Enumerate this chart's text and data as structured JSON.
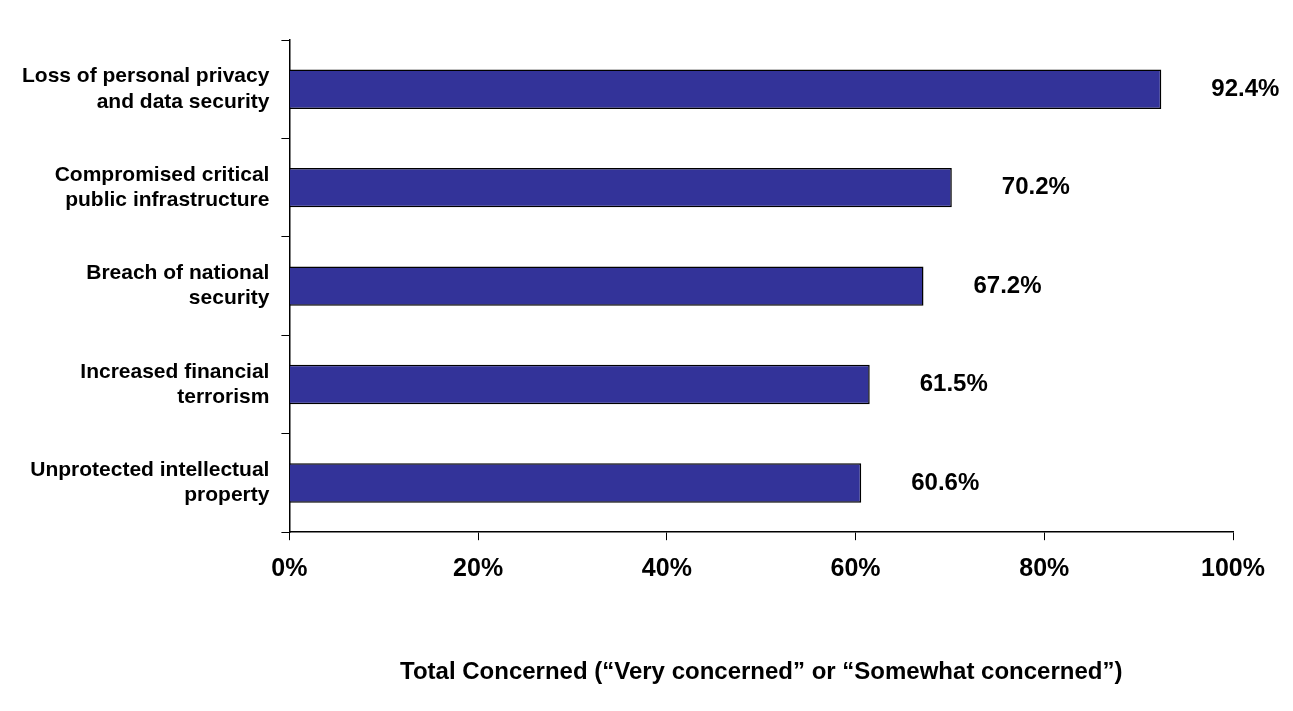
{
  "chart_data": {
    "type": "bar",
    "orientation": "horizontal",
    "xlabel": "Total Concerned (“Very concerned” or “Somewhat concerned”)",
    "categories": [
      "Loss of personal privacy and data security",
      "Compromised critical public infrastructure",
      "Breach of national security",
      "Increased financial terrorism",
      "Unprotected intellectual property"
    ],
    "values": [
      92.4,
      70.2,
      67.2,
      61.5,
      60.6
    ],
    "value_labels": [
      "92.4%",
      "70.2%",
      "67.2%",
      "61.5%",
      "60.6%"
    ],
    "color": "#333399",
    "xlim": [
      0,
      100
    ],
    "xticks": [
      {
        "value": 0,
        "label": "0%"
      },
      {
        "value": 20,
        "label": "20%"
      },
      {
        "value": 40,
        "label": "40%"
      },
      {
        "value": 60,
        "label": "60%"
      },
      {
        "value": 80,
        "label": "80%"
      },
      {
        "value": 100,
        "label": "100%"
      }
    ],
    "grid": false,
    "legend": false
  }
}
